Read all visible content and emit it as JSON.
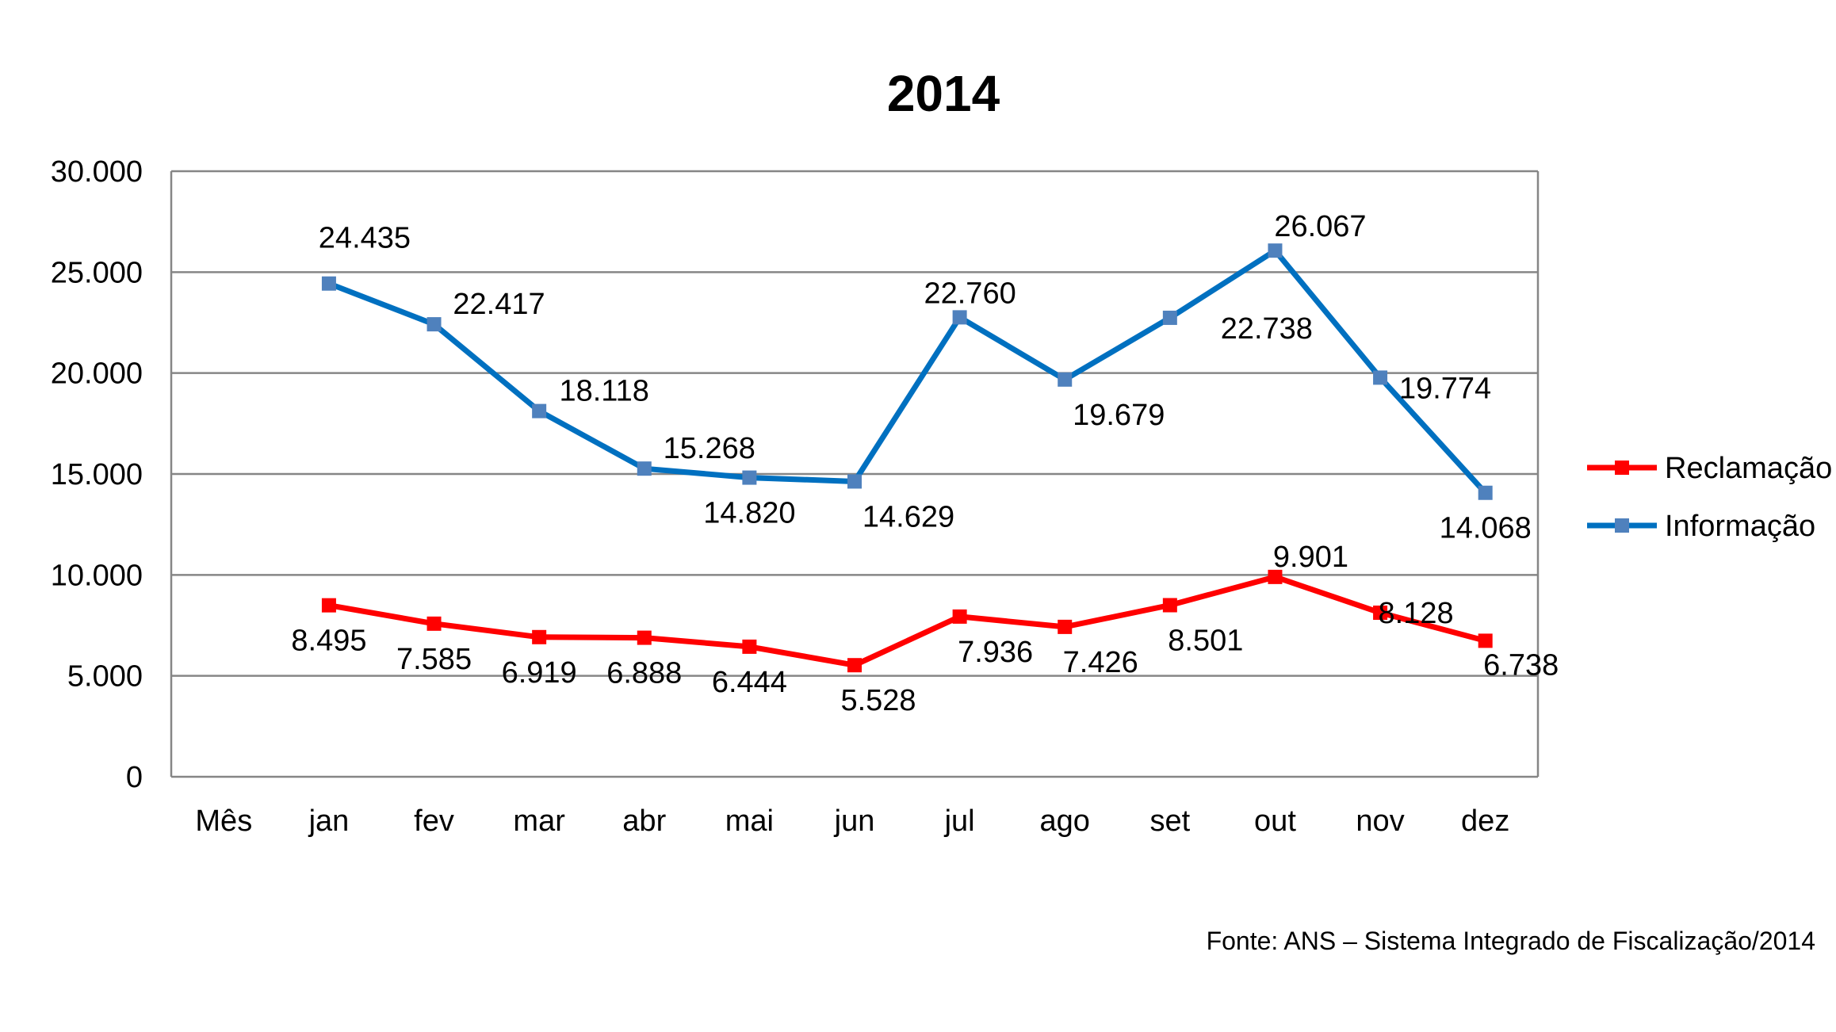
{
  "chart_data": {
    "type": "line",
    "title": "2014",
    "xlabel": "",
    "ylabel": "",
    "categories": [
      "Mês",
      "jan",
      "fev",
      "mar",
      "abr",
      "mai",
      "jun",
      "jul",
      "ago",
      "set",
      "out",
      "nov",
      "dez"
    ],
    "ylim": [
      0,
      30000
    ],
    "yticks": [
      0,
      5000,
      10000,
      15000,
      20000,
      25000,
      30000
    ],
    "ytick_labels": [
      "0",
      "5.000",
      "10.000",
      "15.000",
      "20.000",
      "25.000",
      "30.000"
    ],
    "grid": true,
    "legend_position": "right",
    "series": [
      {
        "name": "Reclamação",
        "color": "#FF0000",
        "values": [
          null,
          8495,
          7585,
          6919,
          6888,
          6444,
          5528,
          7936,
          7426,
          8501,
          9901,
          8128,
          6738
        ],
        "labels": [
          null,
          "8.495",
          "7.585",
          "6.919",
          "6.888",
          "6.444",
          "5.528",
          "7.936",
          "7.426",
          "8.501",
          "9.901",
          "8.128",
          "6.738"
        ]
      },
      {
        "name": "Informação",
        "color": "#0070C0",
        "marker_color": "#4F81BD",
        "values": [
          null,
          24435,
          22417,
          18118,
          15268,
          14820,
          14629,
          22760,
          19679,
          22738,
          26067,
          19774,
          14068
        ],
        "labels": [
          null,
          "24.435",
          "22.417",
          "18.118",
          "15.268",
          "14.820",
          "14.629",
          "22.760",
          "19.679",
          "22.738",
          "26.067",
          "19.774",
          "14.068"
        ]
      }
    ],
    "source": "Fonte: ANS – Sistema Integrado de Fiscalização/2014"
  }
}
